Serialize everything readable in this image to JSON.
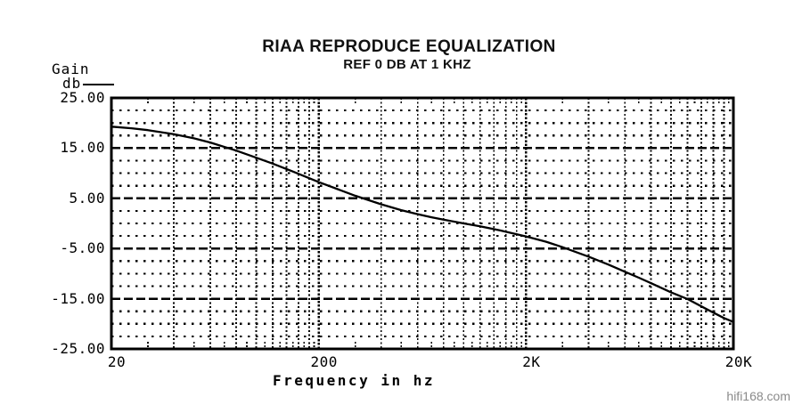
{
  "page": {
    "background": "#ffffff",
    "watermark": "hifi168.com",
    "watermark_color": "#8a8a8a"
  },
  "chart_data": {
    "type": "line",
    "title": "RIAA REPRODUCE EQUALIZATION",
    "subtitle": "REF 0 DB AT 1 KHZ",
    "xlabel": "Frequency in hz",
    "ylabel_line1": "Gain",
    "ylabel_line2": "db",
    "x_scale": "log",
    "x_range_hz": [
      20,
      20000
    ],
    "y_range_db": [
      -25,
      25
    ],
    "line_color": "#000000",
    "grid": {
      "h_major_db": [
        15,
        5,
        -5,
        -15
      ],
      "h_minor_step_db": 2.5,
      "decades_hz": [
        20,
        200,
        2000
      ],
      "major_style": "dashed",
      "minor_style": "dotted"
    },
    "xticks": [
      {
        "label": "20",
        "hz": 20
      },
      {
        "label": "200",
        "hz": 200
      },
      {
        "label": "2K",
        "hz": 2000
      },
      {
        "label": "20K",
        "hz": 20000
      }
    ],
    "yticks": [
      {
        "label": "25.00",
        "db": 25
      },
      {
        "label": "15.00",
        "db": 15
      },
      {
        "label": "5.00",
        "db": 5
      },
      {
        "label": "-5.00",
        "db": -5
      },
      {
        "label": "-15.00",
        "db": -15
      },
      {
        "label": "-25.00",
        "db": -25
      }
    ],
    "series": [
      {
        "name": "RIAA reproduce equalization curve",
        "color": "#000000",
        "points": [
          [
            20,
            19.27
          ],
          [
            25,
            18.96
          ],
          [
            30,
            18.59
          ],
          [
            40,
            17.79
          ],
          [
            50,
            16.95
          ],
          [
            60,
            16.11
          ],
          [
            80,
            14.51
          ],
          [
            100,
            13.09
          ],
          [
            120,
            11.91
          ],
          [
            150,
            10.33
          ],
          [
            200,
            8.22
          ],
          [
            250,
            6.73
          ],
          [
            300,
            5.51
          ],
          [
            400,
            3.81
          ],
          [
            500,
            2.65
          ],
          [
            600,
            1.84
          ],
          [
            700,
            1.23
          ],
          [
            800,
            0.75
          ],
          [
            900,
            0.35
          ],
          [
            1000,
            0.0
          ],
          [
            1200,
            -0.56
          ],
          [
            1500,
            -1.4
          ],
          [
            2000,
            -2.59
          ],
          [
            2500,
            -3.66
          ],
          [
            3000,
            -4.74
          ],
          [
            4000,
            -6.61
          ],
          [
            5000,
            -8.21
          ],
          [
            6000,
            -9.62
          ],
          [
            7000,
            -10.82
          ],
          [
            8000,
            -11.89
          ],
          [
            10000,
            -13.73
          ],
          [
            12000,
            -15.05
          ],
          [
            15000,
            -17.16
          ],
          [
            18000,
            -18.85
          ],
          [
            20000,
            -19.62
          ]
        ]
      }
    ]
  }
}
